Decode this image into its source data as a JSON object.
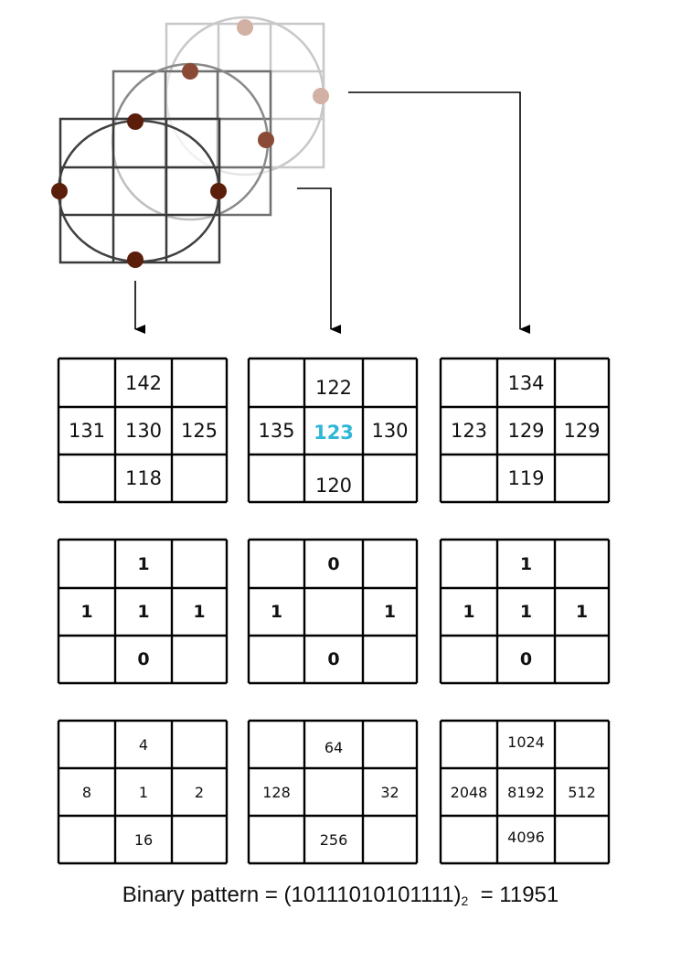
{
  "grids": {
    "values": [
      {
        "top": "142",
        "left": "131",
        "center": "130",
        "right": "125",
        "bottom": "118"
      },
      {
        "top": "122",
        "left": "135",
        "center": "123",
        "right": "130",
        "bottom": "120"
      },
      {
        "top": "134",
        "left": "123",
        "center": "129",
        "right": "129",
        "bottom": "119"
      }
    ],
    "bits": [
      {
        "top": "1",
        "left": "1",
        "center": "1",
        "right": "1",
        "bottom": "0"
      },
      {
        "top": "0",
        "left": "1",
        "center": "",
        "right": "1",
        "bottom": "0"
      },
      {
        "top": "1",
        "left": "1",
        "center": "1",
        "right": "1",
        "bottom": "0"
      }
    ],
    "weights": [
      {
        "top": "4",
        "left": "8",
        "center": "1",
        "right": "2",
        "bottom": "16"
      },
      {
        "top": "64",
        "left": "128",
        "center": "",
        "right": "32",
        "bottom": "256"
      },
      {
        "top": "1024",
        "left": "2048",
        "center": "8192",
        "right": "512",
        "bottom": "4096"
      }
    ]
  },
  "caption": {
    "prefix": "Binary pattern = (10111010101111)",
    "subscript": "2",
    "result": "  = 11951"
  },
  "colors": {
    "highlight": "#2fb7d8",
    "sample_point_front": "#5a1e0a",
    "sample_point_middle": "#8a4a35",
    "sample_point_back": "#d2b0a4"
  }
}
